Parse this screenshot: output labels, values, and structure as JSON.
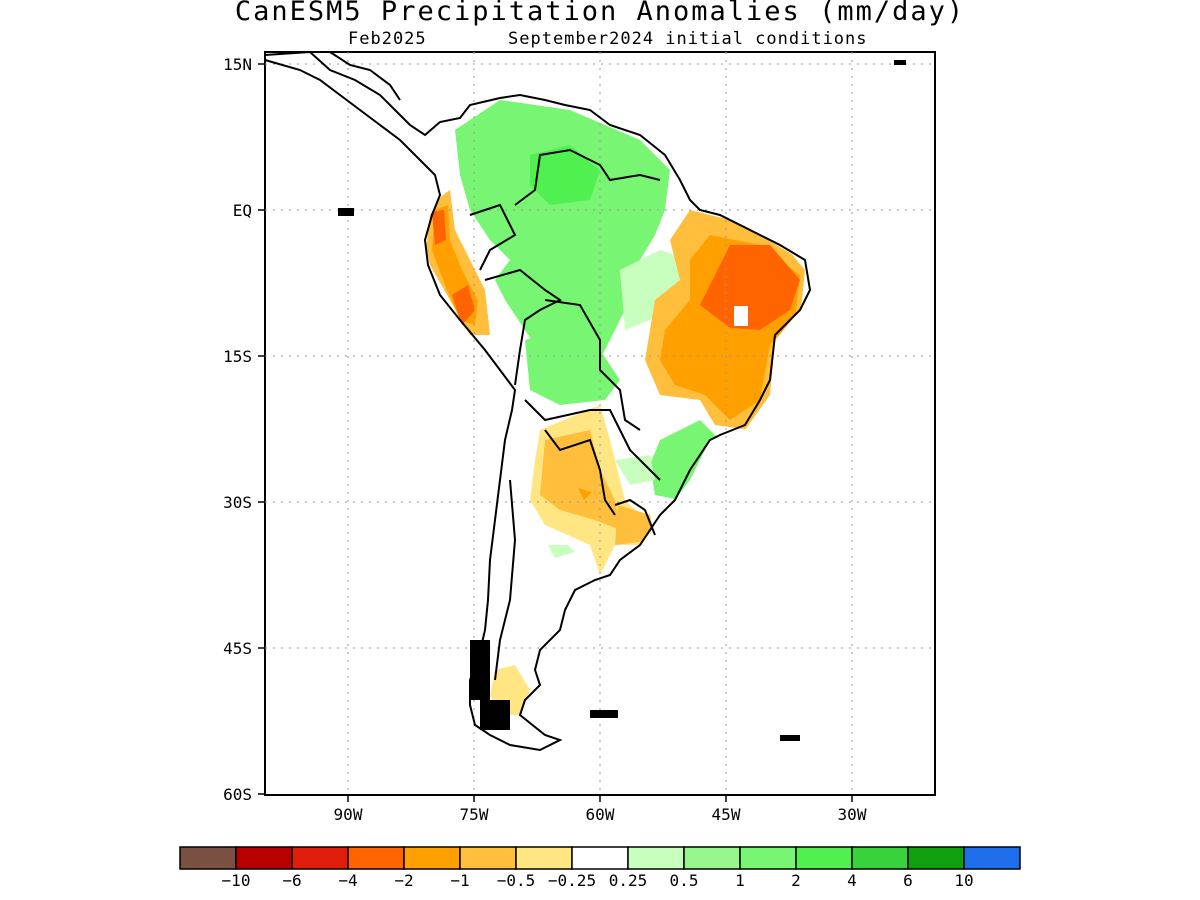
{
  "title": "CanESM5 Precipitation Anomalies (mm/day)",
  "subtitle_left": "Feb2025",
  "subtitle_right": "September2024 initial conditions",
  "map": {
    "region": "South America",
    "lon_range": [
      -100,
      -20
    ],
    "lat_range": [
      -60,
      15
    ],
    "lat_ticks": [
      {
        "label": "15N",
        "value": 15
      },
      {
        "label": "EQ",
        "value": 0
      },
      {
        "label": "15S",
        "value": -15
      },
      {
        "label": "30S",
        "value": -30
      },
      {
        "label": "45S",
        "value": -45
      },
      {
        "label": "60S",
        "value": -60
      }
    ],
    "lon_ticks": [
      {
        "label": "90W",
        "value": -90
      },
      {
        "label": "75W",
        "value": -75
      },
      {
        "label": "60W",
        "value": -60
      },
      {
        "label": "45W",
        "value": -45
      },
      {
        "label": "30W",
        "value": -30
      }
    ],
    "grid": "dotted"
  },
  "colorbar": {
    "colors": [
      "#7a5043",
      "#b80000",
      "#e01c0c",
      "#ff6400",
      "#ffa000",
      "#ffbe3c",
      "#ffe682",
      "#ffffff",
      "#c8ffbe",
      "#96f58c",
      "#78f573",
      "#50f050",
      "#37d23c",
      "#0fa00f",
      "#1e6eeb"
    ],
    "labels": [
      "−10",
      "−6",
      "−4",
      "−2",
      "−1",
      "−0.5",
      "−0.25",
      "0.25",
      "0.5",
      "1",
      "2",
      "4",
      "6",
      "10"
    ]
  }
}
